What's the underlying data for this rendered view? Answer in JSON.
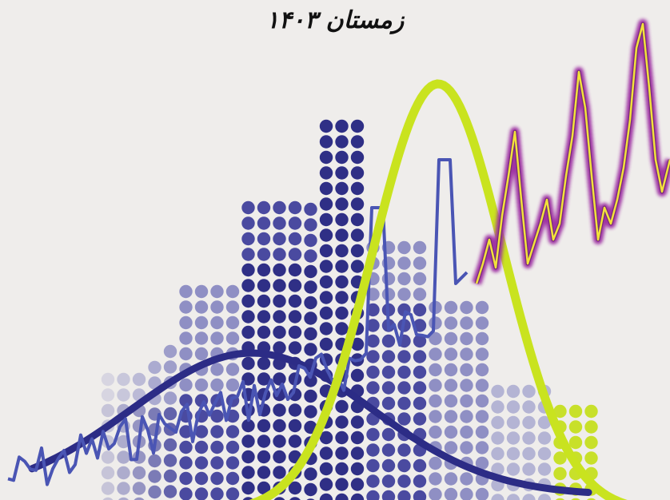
{
  "title": "زمستان ۱۴۰۳",
  "colors": {
    "background": "#efedeb",
    "dots_dark": "#2f2f86",
    "dots_mid": "#4a4aa0",
    "dots_light": "#8f8fc4",
    "dots_faint": "#b4b4d4",
    "dots_lime": "#c8e02a",
    "bell_wide": "#2c2c86",
    "bell_narrow": "#c9e31f",
    "jagged_line": "#4a55b4",
    "glow_line": "#9b2aa0",
    "glow_core": "#f2e23a"
  },
  "icons": [
    "dot-histogram-graphic",
    "normal-curve-graphic",
    "noisy-signal-graphic"
  ]
}
